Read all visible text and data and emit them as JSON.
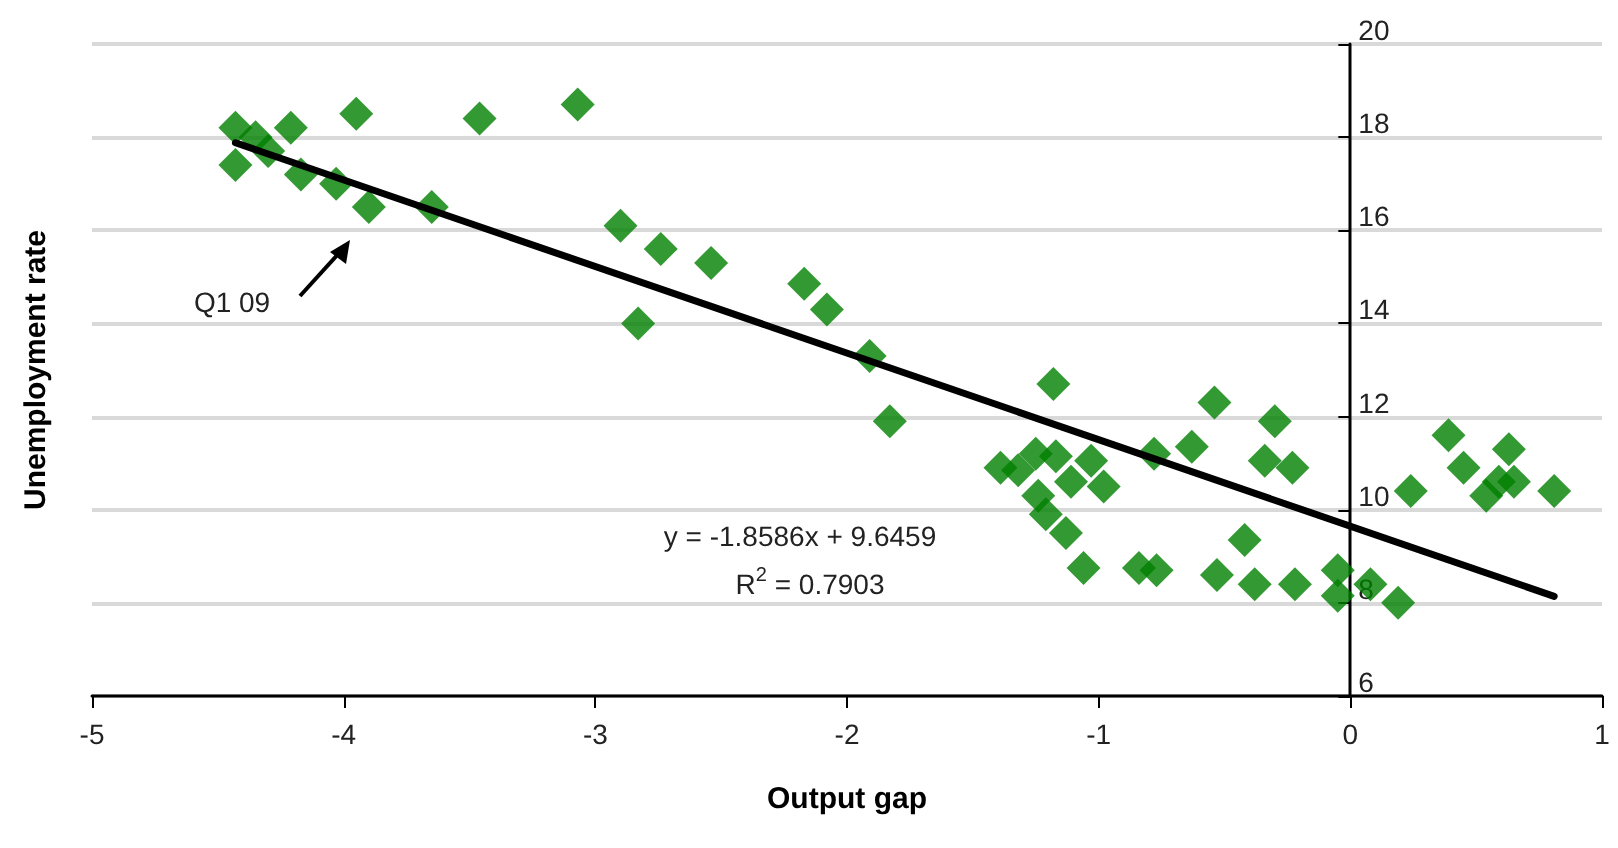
{
  "chart_data": {
    "type": "scatter",
    "xlabel": "Output gap",
    "ylabel": "Unemployment rate",
    "xlim": [
      -5,
      1
    ],
    "xticks": [
      -5,
      -4,
      -3,
      -2,
      -1,
      0,
      1
    ],
    "ylim": [
      6,
      20
    ],
    "yticks": [
      6,
      8,
      10,
      12,
      14,
      16,
      18,
      20
    ],
    "grid": "y",
    "marker": "diamond",
    "annotations": [
      "Q1 09",
      "y = -1.8586x + 9.6459",
      "R$^{2}$ = 0.7903"
    ],
    "series": [
      {
        "color": "#008000",
        "x": [
          -4.43,
          -4.43,
          -4.35,
          -4.3,
          -4.21,
          -4.17,
          -4.03,
          -3.95,
          -3.9,
          -3.65,
          -3.46,
          -3.07,
          -2.9,
          -2.74,
          -2.83,
          -2.54,
          -2.17,
          -2.08,
          -1.91,
          -1.83,
          -1.18,
          -1.39,
          -1.32,
          -1.25,
          -1.17,
          -1.24,
          -1.21,
          -1.13,
          -1.06,
          -1.11,
          -1.03,
          -0.98,
          -0.84,
          -0.77,
          -0.78,
          -0.63,
          -0.54,
          -0.53,
          -0.42,
          -0.38,
          -0.22,
          -0.3,
          -0.34,
          -0.23,
          -0.05,
          -0.05,
          0.08,
          0.19,
          0.24,
          0.39,
          0.45,
          0.54,
          0.59,
          0.63,
          0.65,
          0.81
        ],
        "values": [
          18.2,
          17.4,
          18.0,
          17.7,
          18.2,
          17.2,
          17.0,
          18.5,
          16.5,
          16.5,
          18.4,
          18.7,
          16.1,
          15.6,
          14.0,
          15.3,
          14.85,
          14.3,
          13.3,
          11.9,
          12.7,
          10.9,
          10.85,
          11.2,
          11.15,
          10.3,
          9.9,
          9.5,
          8.75,
          10.6,
          11.05,
          10.5,
          8.75,
          8.7,
          11.2,
          11.35,
          12.3,
          8.6,
          9.35,
          8.4,
          8.4,
          11.9,
          11.05,
          10.9,
          8.7,
          8.15,
          8.4,
          8.0,
          10.4,
          11.6,
          10.9,
          10.3,
          10.6,
          11.3,
          10.6,
          10.4
        ]
      },
      {
        "type": "line",
        "color": "#000000",
        "marker": "none",
        "line_style": "solid",
        "x": [
          -4.43,
          0.81
        ],
        "values": [
          17.88,
          8.14
        ]
      }
    ]
  }
}
